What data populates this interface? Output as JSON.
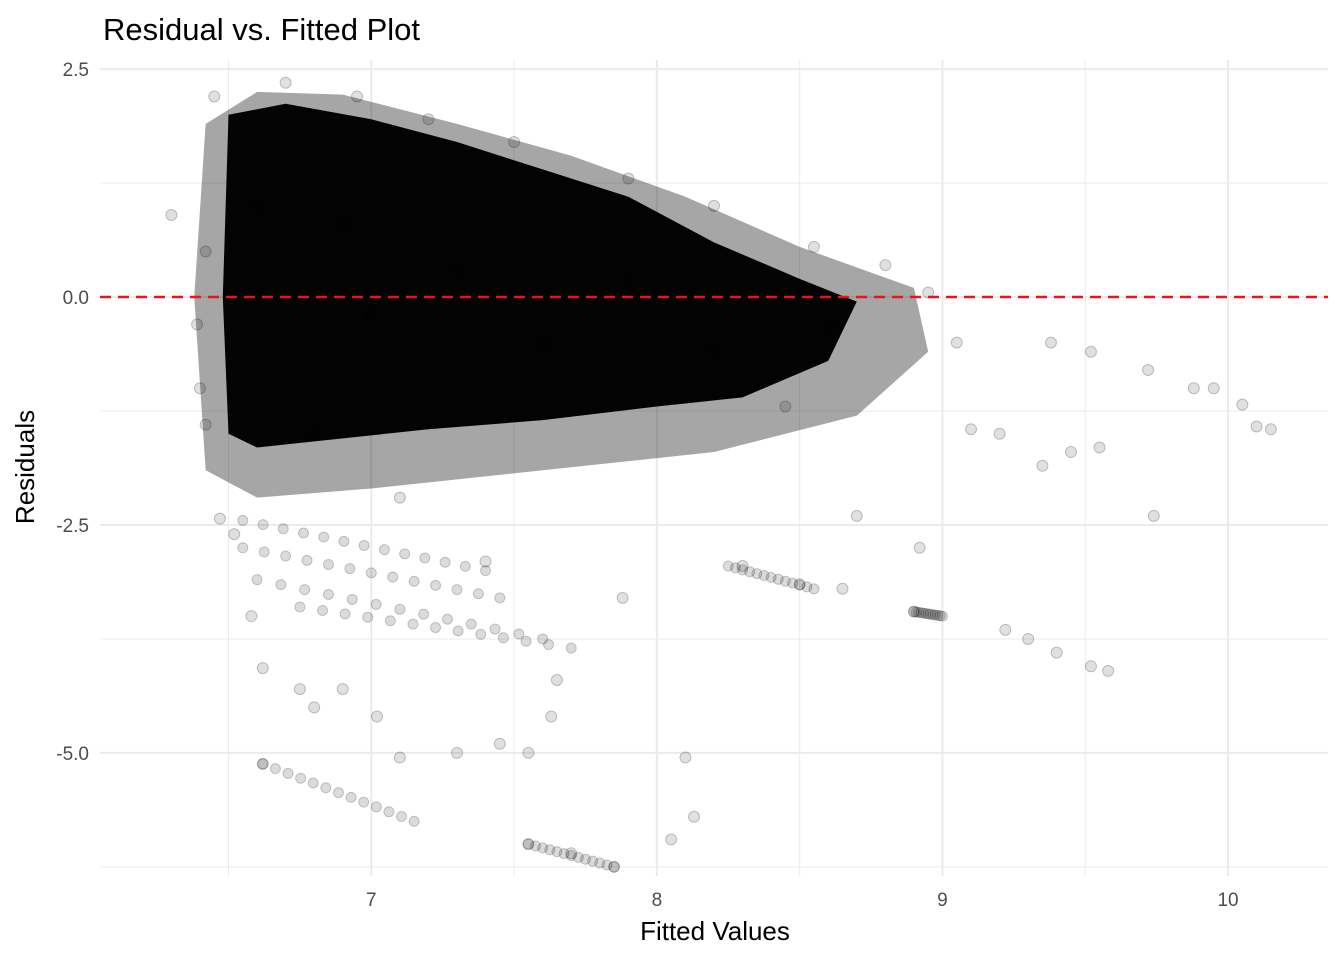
{
  "chart_data": {
    "type": "scatter",
    "title": "Residual vs. Fitted Plot",
    "xlabel": "Fitted Values",
    "ylabel": "Residuals",
    "xlim": [
      6.05,
      10.35
    ],
    "ylim": [
      -6.35,
      2.6
    ],
    "x_ticks": [
      7,
      8,
      9,
      10
    ],
    "y_ticks": [
      2.5,
      0.0,
      -2.5,
      -5.0
    ],
    "x_tick_labels": [
      "7",
      "8",
      "9",
      "10"
    ],
    "y_tick_labels": [
      "2.5",
      "0.0",
      "-2.5",
      "-5.0"
    ],
    "grid": true,
    "legend": "none",
    "reference_line": {
      "y": 0,
      "color": "#e8141e",
      "style": "dashed"
    },
    "point_color": "#000000",
    "point_opacity": 0.12,
    "series": [
      {
        "values": [
          {
            "x": 6.3,
            "y": 0.9
          },
          {
            "x": 6.42,
            "y": 0.5
          },
          {
            "x": 6.39,
            "y": -0.3
          },
          {
            "x": 6.4,
            "y": -1.0
          },
          {
            "x": 6.42,
            "y": -1.4
          },
          {
            "x": 6.47,
            "y": -2.43
          },
          {
            "x": 6.52,
            "y": -2.6
          },
          {
            "x": 6.58,
            "y": -3.5
          },
          {
            "x": 6.62,
            "y": -4.07
          },
          {
            "x": 6.62,
            "y": -5.12
          },
          {
            "x": 6.75,
            "y": -4.3
          },
          {
            "x": 6.8,
            "y": -4.5
          },
          {
            "x": 6.9,
            "y": -4.3
          },
          {
            "x": 7.02,
            "y": -4.6
          },
          {
            "x": 7.1,
            "y": -5.05
          },
          {
            "x": 7.3,
            "y": -5.0
          },
          {
            "x": 7.45,
            "y": -4.9
          },
          {
            "x": 7.55,
            "y": -5.0
          },
          {
            "x": 7.55,
            "y": -6.0
          },
          {
            "x": 7.7,
            "y": -6.1
          },
          {
            "x": 7.85,
            "y": -6.25
          },
          {
            "x": 7.63,
            "y": -4.6
          },
          {
            "x": 7.65,
            "y": -4.2
          },
          {
            "x": 7.88,
            "y": -3.3
          },
          {
            "x": 8.05,
            "y": -5.95
          },
          {
            "x": 8.1,
            "y": -5.05
          },
          {
            "x": 8.13,
            "y": -5.7
          },
          {
            "x": 8.3,
            "y": -2.95
          },
          {
            "x": 8.5,
            "y": -3.15
          },
          {
            "x": 8.65,
            "y": -3.2
          },
          {
            "x": 8.7,
            "y": -2.4
          },
          {
            "x": 8.9,
            "y": -3.45
          },
          {
            "x": 8.92,
            "y": -2.75
          },
          {
            "x": 9.05,
            "y": -0.5
          },
          {
            "x": 9.1,
            "y": -1.45
          },
          {
            "x": 9.2,
            "y": -1.5
          },
          {
            "x": 9.22,
            "y": -3.65
          },
          {
            "x": 9.3,
            "y": -3.75
          },
          {
            "x": 9.35,
            "y": -1.85
          },
          {
            "x": 9.4,
            "y": -3.9
          },
          {
            "x": 9.38,
            "y": -0.5
          },
          {
            "x": 9.45,
            "y": -1.7
          },
          {
            "x": 9.52,
            "y": -0.6
          },
          {
            "x": 9.55,
            "y": -1.65
          },
          {
            "x": 9.52,
            "y": -4.05
          },
          {
            "x": 9.58,
            "y": -4.1
          },
          {
            "x": 9.72,
            "y": -0.8
          },
          {
            "x": 9.74,
            "y": -2.4
          },
          {
            "x": 9.88,
            "y": -1.0
          },
          {
            "x": 9.95,
            "y": -1.0
          },
          {
            "x": 10.05,
            "y": -1.18
          },
          {
            "x": 10.1,
            "y": -1.42
          },
          {
            "x": 10.15,
            "y": -1.45
          },
          {
            "x": 8.8,
            "y": 0.35
          },
          {
            "x": 8.95,
            "y": 0.05
          },
          {
            "x": 8.55,
            "y": 0.55
          },
          {
            "x": 8.2,
            "y": 1.0
          },
          {
            "x": 7.9,
            "y": 1.3
          },
          {
            "x": 7.5,
            "y": 1.7
          },
          {
            "x": 7.2,
            "y": 1.95
          },
          {
            "x": 6.95,
            "y": 2.2
          },
          {
            "x": 6.7,
            "y": 2.35
          },
          {
            "x": 6.45,
            "y": 2.2
          },
          {
            "x": 7.0,
            "y": -0.2
          },
          {
            "x": 7.3,
            "y": 0.3
          },
          {
            "x": 7.6,
            "y": -0.5
          },
          {
            "x": 7.9,
            "y": 0.2
          },
          {
            "x": 8.2,
            "y": -0.6
          },
          {
            "x": 8.45,
            "y": -1.2
          },
          {
            "x": 8.6,
            "y": -0.3
          },
          {
            "x": 6.8,
            "y": -1.5
          },
          {
            "x": 7.1,
            "y": -2.2
          },
          {
            "x": 7.4,
            "y": -2.9
          },
          {
            "x": 6.6,
            "y": 1.0
          },
          {
            "x": 6.9,
            "y": 0.8
          }
        ]
      }
    ]
  }
}
